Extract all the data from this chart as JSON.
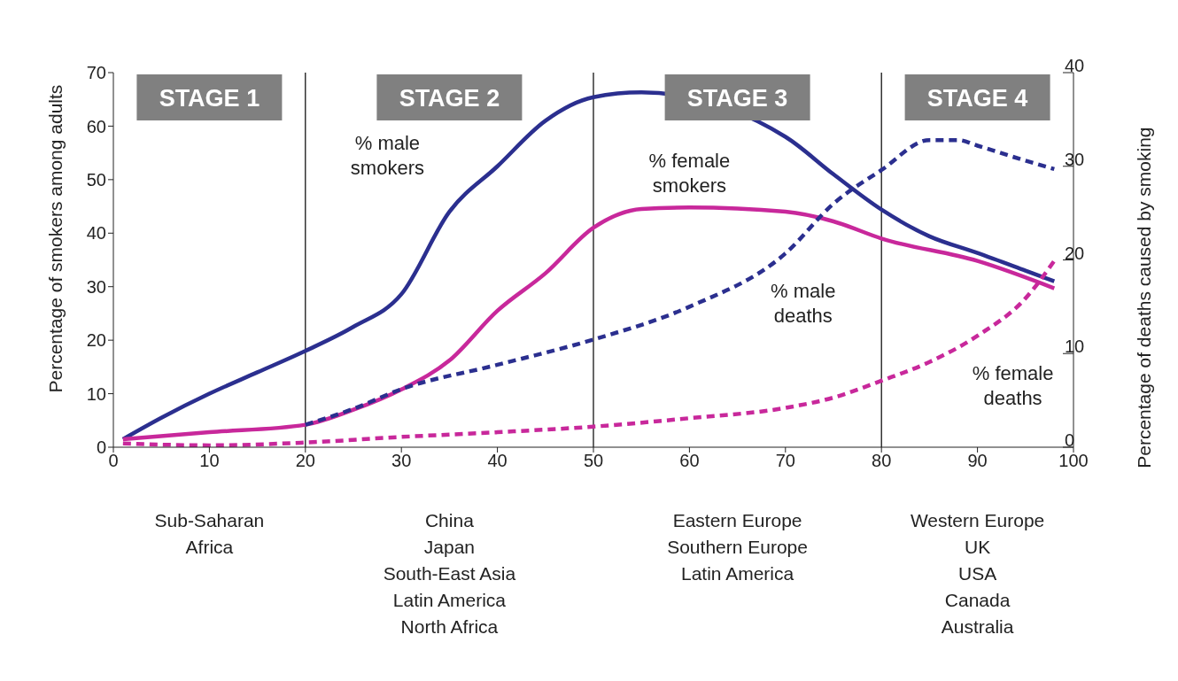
{
  "chart_data": {
    "type": "line",
    "xlabel": null,
    "ylabel": "Percentage of smokers among adults",
    "y2label": "Percentage of deaths caused by smoking",
    "xlim": [
      0,
      100
    ],
    "xticks": [
      0,
      10,
      20,
      30,
      40,
      50,
      60,
      70,
      80,
      90,
      100
    ],
    "ylim": [
      0,
      70
    ],
    "yticks": [
      0,
      10,
      20,
      30,
      40,
      50,
      60,
      70
    ],
    "y2lim": [
      0,
      40
    ],
    "y2ticks": [
      0,
      10,
      20,
      30,
      40
    ],
    "legend": false,
    "marker": "none",
    "series": [
      {
        "name": "% male\nsmokers",
        "color": "#2b2f8f",
        "line_style": "solid",
        "x": [
          1,
          5,
          10,
          15,
          20,
          25,
          30,
          35,
          40,
          45,
          50,
          55,
          60,
          65,
          70,
          75,
          80,
          85,
          90,
          95,
          98
        ],
        "values": [
          1.5,
          5.5,
          10,
          14,
          18,
          22.5,
          28.6,
          44,
          52.5,
          61,
          65.4,
          66.3,
          null,
          null,
          58,
          51,
          44.4,
          39.4,
          36.3,
          33,
          31
        ]
      },
      {
        "name": "% female\nsmokers",
        "color": "#c8289b",
        "line_style": "solid",
        "x": [
          1,
          10,
          20,
          25,
          30,
          35,
          40,
          45,
          50,
          55,
          60,
          70,
          75,
          80,
          90,
          98
        ],
        "values": [
          1.5,
          2.8,
          4.2,
          7,
          10.8,
          16.2,
          25.5,
          32.5,
          41,
          44.5,
          44.8,
          44,
          42.2,
          39,
          34.8,
          29.7
        ]
      },
      {
        "name": "% male\ndeaths",
        "color": "#2b2f8f",
        "line_style": "dashed",
        "axis": "y2",
        "x": [
          20,
          25,
          30,
          40,
          50,
          60,
          70,
          75,
          80,
          85,
          88,
          90,
          95,
          98
        ],
        "values": [
          2.4,
          4.1,
          6.2,
          8.8,
          11.5,
          15,
          20.7,
          26,
          29.6,
          32.8,
          32.8,
          32.2,
          30.6,
          29.7
        ]
      },
      {
        "name": "% female\ndeaths",
        "color": "#c8289b",
        "line_style": "dashed",
        "axis": "y2",
        "x": [
          1,
          10,
          20,
          30,
          40,
          50,
          60,
          70,
          75,
          80,
          85,
          90,
          95,
          98
        ],
        "values": [
          0.4,
          0.2,
          0.5,
          1.1,
          1.6,
          2.2,
          3.1,
          4.2,
          5.3,
          7.1,
          9.1,
          11.9,
          15.9,
          19.9
        ]
      }
    ],
    "ref_lines": [
      {
        "axis": "x",
        "value": 20,
        "color": "#000000"
      },
      {
        "axis": "x",
        "value": 50,
        "color": "#000000"
      },
      {
        "axis": "x",
        "value": 80,
        "color": "#000000"
      }
    ],
    "annotations": [
      "STAGE 1",
      "STAGE 2",
      "STAGE 3",
      "STAGE 4",
      "Sub-Saharan\nAfrica",
      "China\nJapan\nSouth-East Asia\nLatin America\nNorth Africa",
      "Eastern Europe\nSouthern Europe\nLatin America",
      "Western Europe\nUK\nUSA\nCanada\nAustralia"
    ]
  }
}
